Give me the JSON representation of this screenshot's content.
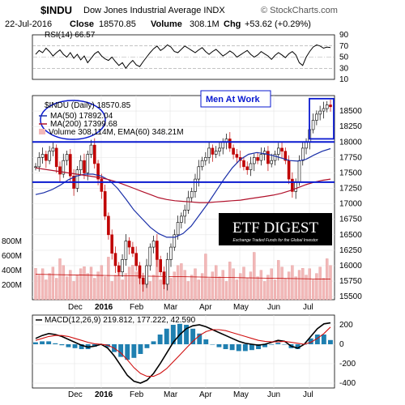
{
  "header": {
    "symbol": "$INDU",
    "name": "Dow Jones Industrial Average INDX",
    "source": "© StockCharts.com",
    "date": "22-Jul-2016",
    "close_label": "Close",
    "close_value": "18570.85",
    "volume_label": "Volume",
    "volume_value": "308.1M",
    "chg_label": "Chg",
    "chg_value": "+53.62 (+0.29%)"
  },
  "annotation": {
    "text": "Men At Work"
  },
  "logo": {
    "title": "ETF DIGEST",
    "tagline": "Exchange Traded Funds for the Global Investor"
  },
  "colors": {
    "price_up": "#000000",
    "price_down": "#c00000",
    "ma50": "#1a2fa8",
    "ma200": "#b0102a",
    "volume_bars": "#f2b8b8",
    "volume_ema": "#c00000",
    "trendline": "#0a1ad0",
    "macd_line": "#000000",
    "signal_line": "#d01010",
    "histogram": "#1f7fb0",
    "annotation_text": "#0a1ad0",
    "logo_bg": "#000000"
  },
  "chart_data": [
    {
      "type": "line",
      "name": "rsi",
      "label": "RSI(14) 66.57",
      "ylim": [
        10,
        90
      ],
      "yticks": [
        90,
        70,
        50,
        30,
        10
      ],
      "reference_lines": [
        70,
        30
      ],
      "values": [
        55,
        62,
        58,
        66,
        60,
        52,
        58,
        63,
        55,
        50,
        58,
        48,
        55,
        45,
        52,
        40,
        48,
        56,
        60,
        52,
        47,
        44,
        50,
        42,
        35,
        40,
        30,
        38,
        44,
        36,
        33,
        42,
        50,
        58,
        65,
        70,
        62,
        66,
        72,
        68,
        60,
        58,
        64,
        70,
        66,
        62,
        58,
        63,
        67,
        60,
        55,
        60,
        64,
        58,
        52,
        56,
        61,
        57,
        50,
        54,
        58,
        62,
        55,
        50,
        54,
        60,
        56,
        52,
        46,
        53,
        58,
        54,
        49,
        56,
        60,
        54,
        40,
        35,
        50,
        60,
        68,
        72,
        70,
        66,
        68,
        67
      ]
    },
    {
      "type": "line",
      "name": "price",
      "label": "$INDU (Daily) 18570.85",
      "series": [
        {
          "name": "MA(50) 17892.04",
          "values": [
            17150,
            17180,
            17230,
            17300,
            17390,
            17450,
            17480,
            17480,
            17450,
            17380,
            17250,
            17080,
            16900,
            16760,
            16620,
            16520,
            16460,
            16460,
            16520,
            16640,
            16820,
            17000,
            17200,
            17400,
            17580,
            17720,
            17800,
            17830,
            17810,
            17780,
            17740,
            17700,
            17690,
            17720,
            17790,
            17850,
            17892
          ]
        },
        {
          "name": "MA(200) 17399.68",
          "values": [
            17580,
            17560,
            17540,
            17520,
            17500,
            17480,
            17460,
            17440,
            17420,
            17390,
            17350,
            17300,
            17250,
            17200,
            17150,
            17100,
            17070,
            17050,
            17040,
            17030,
            17020,
            17020,
            17030,
            17040,
            17050,
            17060,
            17080,
            17100,
            17120,
            17140,
            17170,
            17210,
            17260,
            17310,
            17350,
            17380,
            17400
          ]
        }
      ],
      "ylim": [
        15450,
        18750
      ],
      "yticks": [
        18500,
        18250,
        18000,
        17750,
        17500,
        17250,
        17000,
        16750,
        16500,
        16250,
        16000,
        15750,
        15500
      ],
      "xticks": [
        "Dec",
        "2016",
        "Feb",
        "Mar",
        "Apr",
        "May",
        "Jun",
        "Jul"
      ],
      "close": [
        17600,
        17750,
        17800,
        17700,
        17850,
        17900,
        17600,
        17480,
        17700,
        17800,
        17450,
        17250,
        17550,
        17700,
        17500,
        17800,
        17950,
        17650,
        17400,
        17200,
        16800,
        16500,
        16200,
        16000,
        15900,
        16100,
        16400,
        16300,
        16200,
        16000,
        15800,
        15700,
        16000,
        16300,
        16400,
        16100,
        15900,
        15700,
        16100,
        16300,
        16500,
        16700,
        16800,
        16900,
        17100,
        17200,
        17400,
        17600,
        17700,
        17750,
        17900,
        17800,
        17850,
        17900,
        18000,
        18050,
        17900,
        17800,
        17750,
        17700,
        17600,
        17550,
        17650,
        17750,
        17700,
        17800,
        17850,
        17650,
        17700,
        17800,
        17900,
        17850,
        17700,
        17400,
        17200,
        17350,
        17700,
        17900,
        18000,
        18200,
        18350,
        18450,
        18500,
        18540,
        18600,
        18570
      ],
      "volume": {
        "label": "Volume 308,114M, EMA(60) 348.21M",
        "ylim": [
          0,
          800
        ],
        "yticks": [
          800,
          600,
          400,
          200
        ],
        "unit": "M",
        "ema60": 348.21
      },
      "trendlines": [
        18000,
        17350
      ],
      "grid": true
    },
    {
      "type": "line",
      "name": "macd",
      "label": "MACD(12,26,9) 219.812, 177.222, 42.590",
      "ylim": [
        -450,
        300
      ],
      "yticks": [
        200,
        0,
        -200,
        -400
      ],
      "xticks": [
        "Dec",
        "2016",
        "Feb",
        "Mar",
        "Apr",
        "May",
        "Jun",
        "Jul"
      ],
      "series": [
        {
          "name": "MACD",
          "values": [
            60,
            90,
            110,
            100,
            80,
            50,
            20,
            -10,
            -30,
            -20,
            0,
            -40,
            -120,
            -220,
            -320,
            -380,
            -400,
            -370,
            -300,
            -200,
            -90,
            20,
            100,
            160,
            190,
            200,
            180,
            150,
            120,
            90,
            60,
            30,
            10,
            0,
            -10,
            0,
            20,
            40,
            30,
            -20,
            -40,
            0,
            80,
            160,
            210,
            220
          ]
        },
        {
          "name": "Signal",
          "values": [
            40,
            60,
            80,
            90,
            90,
            80,
            60,
            40,
            20,
            5,
            0,
            -10,
            -40,
            -90,
            -160,
            -240,
            -300,
            -330,
            -330,
            -300,
            -250,
            -180,
            -110,
            -40,
            30,
            90,
            130,
            150,
            150,
            140,
            120,
            100,
            80,
            60,
            40,
            30,
            25,
            25,
            30,
            20,
            10,
            0,
            20,
            60,
            110,
            177
          ]
        }
      ],
      "grid": true
    }
  ]
}
